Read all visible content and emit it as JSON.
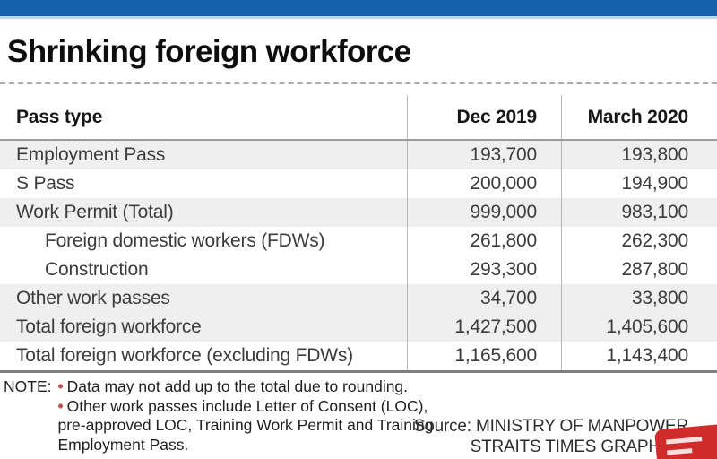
{
  "header": {
    "title": "Shrinking foreign workforce"
  },
  "table": {
    "columns": [
      "Pass type",
      "Dec 2019",
      "March 2020"
    ],
    "rows": [
      {
        "label": "Employment Pass",
        "dec": "193,700",
        "mar": "193,800"
      },
      {
        "label": "S Pass",
        "dec": "200,000",
        "mar": "194,900"
      },
      {
        "label": "Work Permit (Total)",
        "dec": "999,000",
        "mar": "983,100"
      },
      {
        "label": "Foreign domestic workers (FDWs)",
        "dec": "261,800",
        "mar": "262,300"
      },
      {
        "label": "Construction",
        "dec": "293,300",
        "mar": "287,800"
      },
      {
        "label": "Other work passes",
        "dec": "34,700",
        "mar": "33,800"
      },
      {
        "label": "Total foreign workforce",
        "dec": "1,427,500",
        "mar": "1,405,600"
      },
      {
        "label": "Total foreign workforce (excluding FDWs)",
        "dec": "1,165,600",
        "mar": "1,143,400"
      }
    ]
  },
  "notes": {
    "label": "NOTE:",
    "bullet": "•",
    "items": [
      "Data may not add up to the total due to rounding.",
      "Other work passes include Letter of Consent (LOC), pre-approved LOC, Training Work Permit and Training Employment Pass."
    ]
  },
  "source": {
    "line1": "Source: MINISTRY OF MANPOWER",
    "line2": "STRAITS TIMES GRAPHICS"
  },
  "colors": {
    "top_bar_blue": "#1560a8",
    "top_bar_light_blue": "#bcd5ec",
    "row_shade_gray": "#efefef",
    "note_bullet_red": "#c0504d",
    "logo_red": "#d22b2b"
  },
  "chart_data": {
    "type": "table",
    "title": "Shrinking foreign workforce",
    "columns": [
      "Pass type",
      "Dec 2019",
      "March 2020"
    ],
    "rows": [
      {
        "pass_type": "Employment Pass",
        "dec_2019": 193700,
        "march_2020": 193800,
        "indent": false
      },
      {
        "pass_type": "S Pass",
        "dec_2019": 200000,
        "march_2020": 194900,
        "indent": false
      },
      {
        "pass_type": "Work Permit (Total)",
        "dec_2019": 999000,
        "march_2020": 983100,
        "indent": false
      },
      {
        "pass_type": "Foreign domestic workers (FDWs)",
        "dec_2019": 261800,
        "march_2020": 262300,
        "indent": true
      },
      {
        "pass_type": "Construction",
        "dec_2019": 293300,
        "march_2020": 287800,
        "indent": true
      },
      {
        "pass_type": "Other work passes",
        "dec_2019": 34700,
        "march_2020": 33800,
        "indent": false
      },
      {
        "pass_type": "Total foreign workforce",
        "dec_2019": 1427500,
        "march_2020": 1405600,
        "indent": false
      },
      {
        "pass_type": "Total foreign workforce (excluding FDWs)",
        "dec_2019": 1165600,
        "march_2020": 1143400,
        "indent": false
      }
    ],
    "notes": [
      "Data may not add up to the total due to rounding.",
      "Other work passes include Letter of Consent (LOC), pre-approved LOC, Training Work Permit and Training Employment Pass."
    ],
    "source": "MINISTRY OF MANPOWER / STRAITS TIMES GRAPHICS"
  }
}
